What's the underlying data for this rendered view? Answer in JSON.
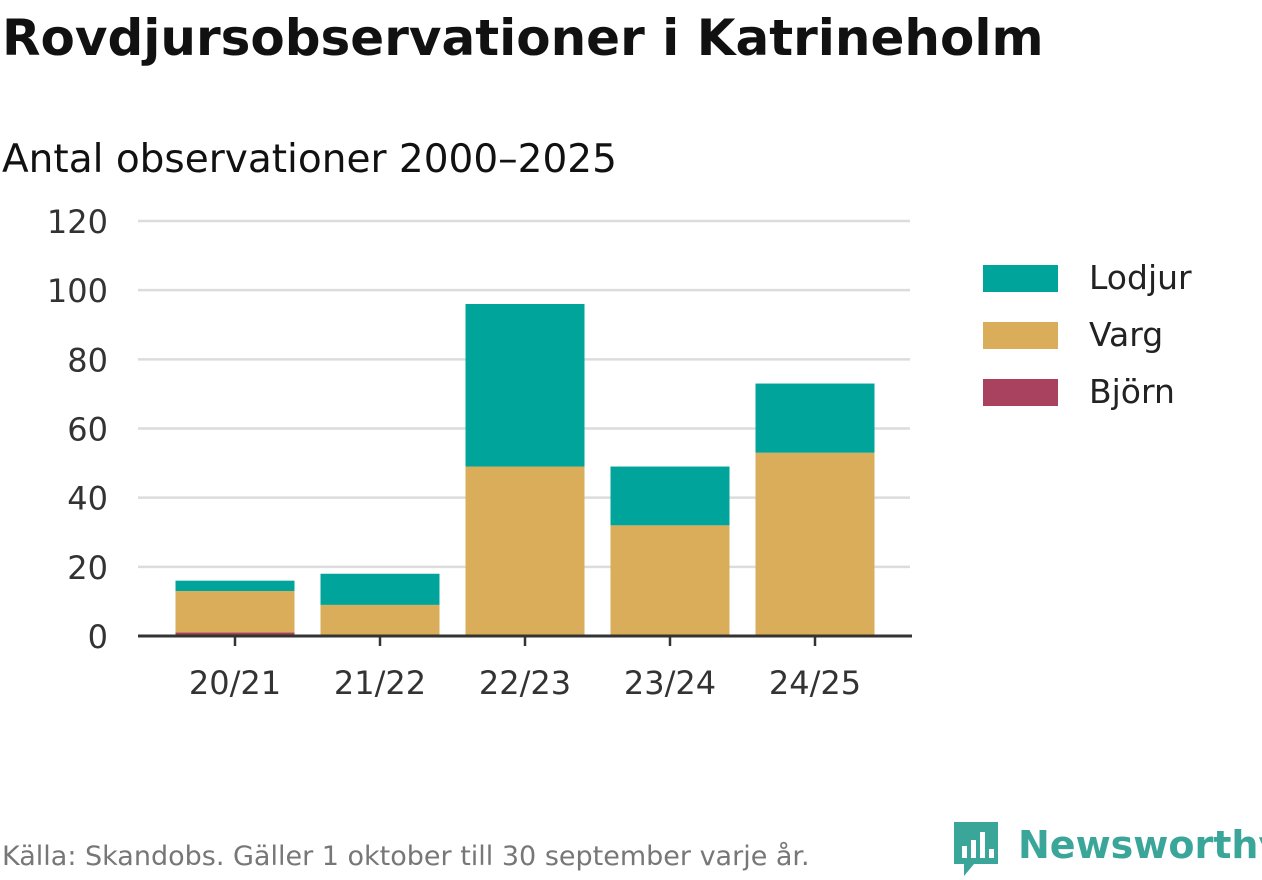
{
  "title": "Rovdjursobservationer i Katrineholm",
  "subtitle": "Antal observationer 2000–2025",
  "source": "Källa: Skandobs. Gäller 1 oktober till 30 september varje år.",
  "brand": {
    "name": "Newsworthy",
    "icon": "newsworthy-logo-icon",
    "color": "#3aa599"
  },
  "legend": [
    {
      "name": "Lodjur",
      "color": "#00a49a"
    },
    {
      "name": "Varg",
      "color": "#d9ad5a"
    },
    {
      "name": "Björn",
      "color": "#a8425e"
    }
  ],
  "chart_data": {
    "type": "bar",
    "stacked": true,
    "title": "Rovdjursobservationer i Katrineholm",
    "subtitle": "Antal observationer 2000–2025",
    "categories": [
      "20/21",
      "21/22",
      "22/23",
      "23/24",
      "24/25"
    ],
    "series": [
      {
        "name": "Björn",
        "color": "#a8425e",
        "values": [
          1,
          0,
          0,
          0,
          0
        ]
      },
      {
        "name": "Varg",
        "color": "#d9ad5a",
        "values": [
          12,
          9,
          49,
          32,
          53
        ]
      },
      {
        "name": "Lodjur",
        "color": "#00a49a",
        "values": [
          3,
          9,
          47,
          17,
          20
        ]
      }
    ],
    "ylim": [
      0,
      120
    ],
    "yticks": [
      0,
      20,
      40,
      60,
      80,
      100,
      120
    ],
    "grid": true,
    "legend_position": "right"
  }
}
